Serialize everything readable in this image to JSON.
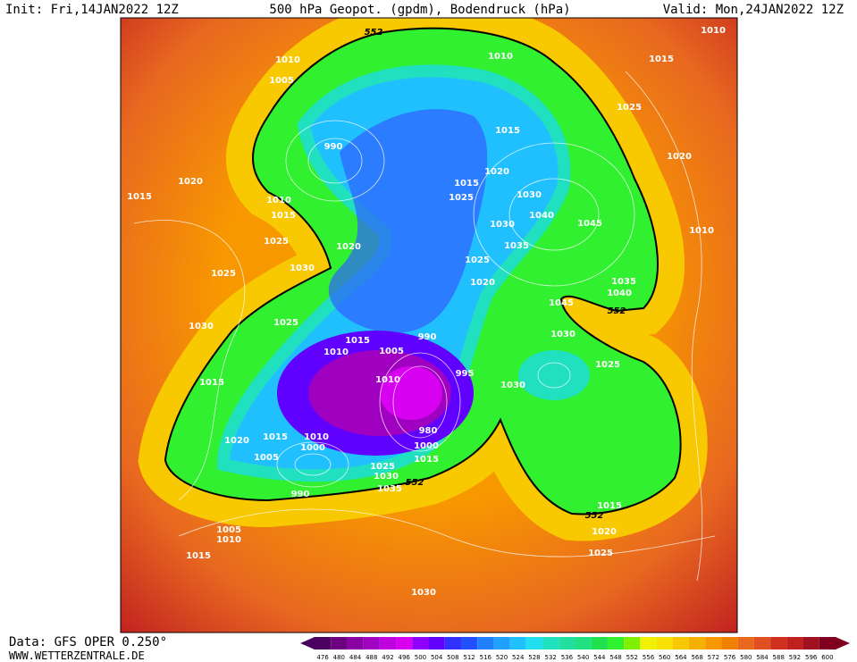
{
  "header": {
    "init": "Init: Fri,14JAN2022 12Z",
    "title": "500 hPa Geopot. (gpdm), Bodendruck (hPa)",
    "valid": "Valid: Mon,24JAN2022 12Z"
  },
  "map": {
    "labels": [
      552,
      1010,
      1010,
      1010,
      1015,
      1005,
      1025,
      1015,
      990,
      1020,
      1020,
      1015,
      1020,
      1015,
      1010,
      1025,
      1030,
      1015,
      1040,
      1045,
      1030,
      1010,
      1025,
      1020,
      1035,
      1030,
      1025,
      1025,
      1035,
      1020,
      1040,
      1030,
      1025,
      1045,
      552,
      1015,
      990,
      1030,
      1010,
      1005,
      1025,
      995,
      1010,
      1015,
      1030,
      980,
      1020,
      1015,
      1010,
      1000,
      1000,
      1005,
      1015,
      1025,
      1030,
      552,
      1035,
      990,
      1015,
      552,
      1020,
      1005,
      1010,
      1025,
      1015,
      1030
    ]
  },
  "scale": {
    "ticks": [
      476,
      480,
      484,
      488,
      492,
      496,
      500,
      504,
      508,
      512,
      516,
      520,
      524,
      528,
      532,
      536,
      540,
      544,
      548,
      552,
      556,
      560,
      564,
      568,
      572,
      576,
      580,
      584,
      588,
      592,
      596,
      600
    ],
    "colors": [
      "#4b0060",
      "#6a0080",
      "#8a00a0",
      "#a000c0",
      "#c000e0",
      "#d800f0",
      "#9000ff",
      "#6000ff",
      "#3030ff",
      "#2050ff",
      "#2080ff",
      "#20a0ff",
      "#20c0ff",
      "#20e0f0",
      "#20e0c0",
      "#20e0a0",
      "#20e080",
      "#20e050",
      "#30f030",
      "#80f000",
      "#f0f000",
      "#f8e000",
      "#f8c800",
      "#f8b000",
      "#f89800",
      "#f08000",
      "#e86820",
      "#e05020",
      "#d03020",
      "#c02020",
      "#a01020",
      "#800020"
    ]
  },
  "footer": {
    "source": "Data: GFS OPER 0.250°",
    "site": "WWW.WETTERZENTRALE.DE"
  }
}
